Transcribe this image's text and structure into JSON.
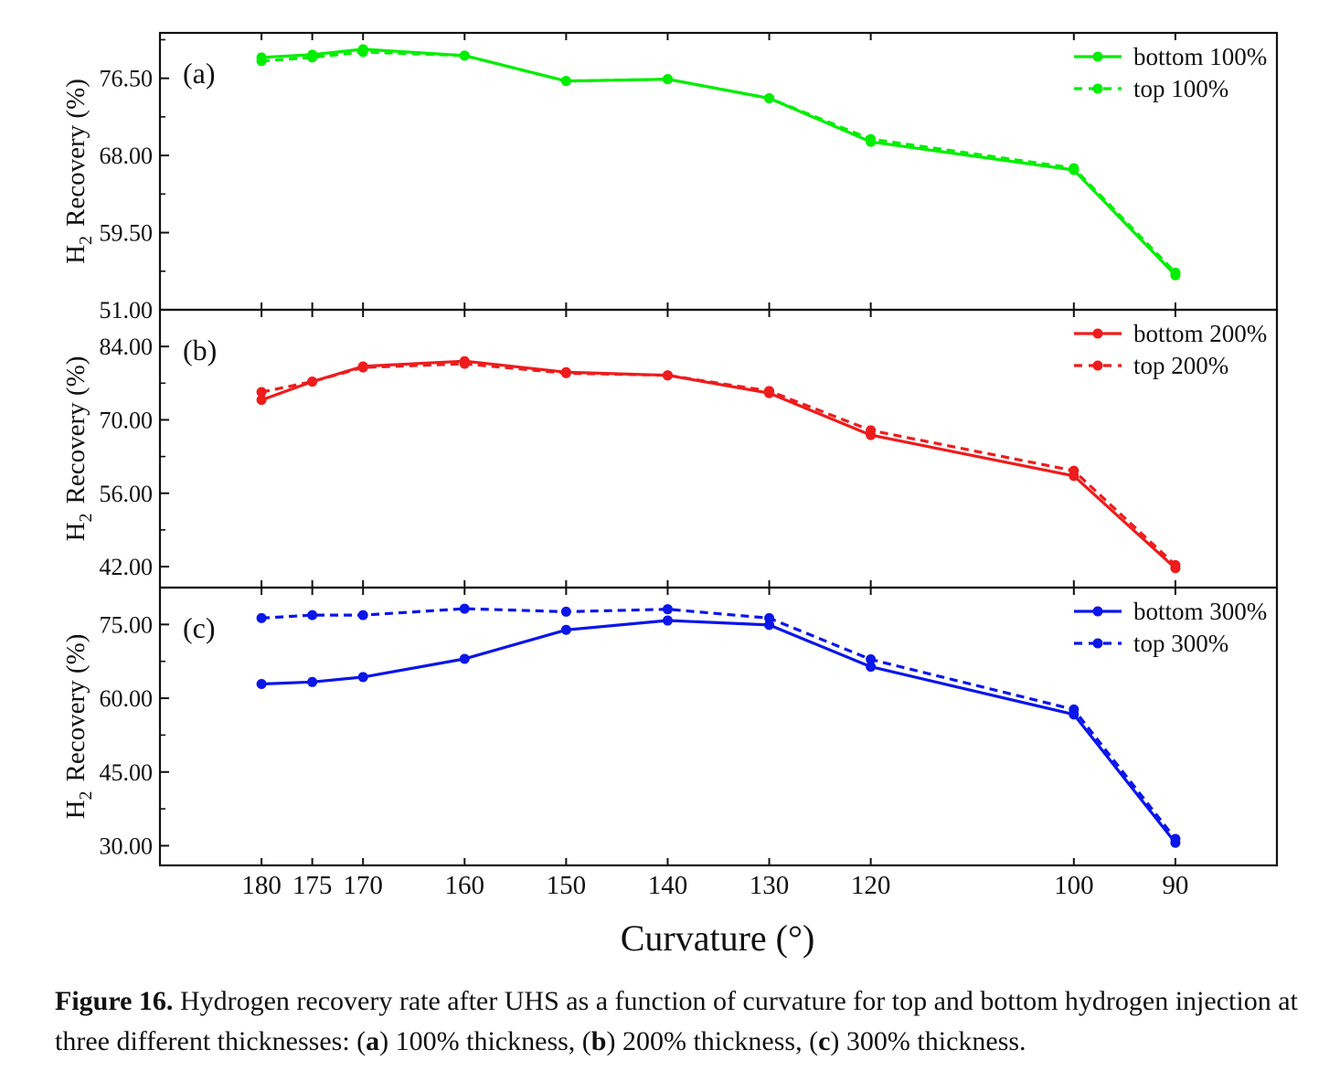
{
  "chart_data": [
    {
      "type": "line",
      "panel_label": "(a)",
      "ylabel_main": "H",
      "ylabel_sub": "2",
      "ylabel_rest": "Recovery (%)",
      "ylim": [
        51.0,
        81.5
      ],
      "yticks": [
        51.0,
        59.5,
        68.0,
        76.5
      ],
      "ytick_labels": [
        "51.00",
        "59.50",
        "68.00",
        "76.50"
      ],
      "x": [
        180,
        175,
        170,
        160,
        150,
        140,
        130,
        120,
        100,
        90
      ],
      "color": "#00ee00",
      "legend_position": "top-right",
      "series": [
        {
          "name": "bottom 100%",
          "style": "solid",
          "values": [
            78.8,
            79.1,
            79.7,
            79.0,
            76.2,
            76.4,
            74.3,
            69.5,
            66.4,
            54.8
          ]
        },
        {
          "name": "top 100%",
          "style": "dashed",
          "values": [
            78.4,
            78.8,
            79.4,
            79.0,
            76.2,
            76.4,
            74.3,
            69.8,
            66.6,
            55.1
          ]
        }
      ]
    },
    {
      "type": "line",
      "panel_label": "(b)",
      "ylabel_main": "H",
      "ylabel_sub": "2",
      "ylabel_rest": "Recovery (%)",
      "ylim": [
        38.0,
        91.0
      ],
      "yticks": [
        42.0,
        56.0,
        70.0,
        84.0
      ],
      "ytick_labels": [
        "42.00",
        "56.00",
        "70.00",
        "84.00"
      ],
      "x": [
        180,
        175,
        170,
        160,
        150,
        140,
        130,
        120,
        100,
        90
      ],
      "color": "#ee1c1c",
      "legend_position": "top-right",
      "series": [
        {
          "name": "bottom 200%",
          "style": "solid",
          "values": [
            73.8,
            77.3,
            80.2,
            81.2,
            79.1,
            78.5,
            75.1,
            67.1,
            59.3,
            41.7
          ]
        },
        {
          "name": "top 200%",
          "style": "dashed",
          "values": [
            75.3,
            77.3,
            80.0,
            80.7,
            78.9,
            78.5,
            75.5,
            68.0,
            60.3,
            42.3
          ]
        }
      ]
    },
    {
      "type": "line",
      "panel_label": "(c)",
      "ylabel_main": "H",
      "ylabel_sub": "2",
      "ylabel_rest": "Recovery (%)",
      "ylim": [
        26.0,
        82.5
      ],
      "yticks": [
        30.0,
        45.0,
        60.0,
        75.0
      ],
      "ytick_labels": [
        "30.00",
        "45.00",
        "60.00",
        "75.00"
      ],
      "x": [
        180,
        175,
        170,
        160,
        150,
        140,
        130,
        120,
        100,
        90
      ],
      "color": "#0b16e8",
      "legend_position": "top-right",
      "series": [
        {
          "name": "bottom 300%",
          "style": "solid",
          "values": [
            62.9,
            63.3,
            64.3,
            68.0,
            73.9,
            75.8,
            74.9,
            66.4,
            56.7,
            30.6
          ]
        },
        {
          "name": "top 300%",
          "style": "dashed",
          "values": [
            76.3,
            76.9,
            76.9,
            78.2,
            77.6,
            78.1,
            76.3,
            67.9,
            57.7,
            31.4
          ]
        }
      ]
    }
  ],
  "xaxis": {
    "label": "Curvature (°)",
    "tick_values": [
      180,
      175,
      170,
      160,
      150,
      140,
      130,
      120,
      100,
      90
    ],
    "tick_labels": [
      "180",
      "175",
      "170",
      "160",
      "150",
      "140",
      "130",
      "120",
      "100",
      "90"
    ],
    "xlim": [
      190,
      80
    ],
    "reversed": true
  },
  "caption": {
    "label": "Figure 16.",
    "part1": " Hydrogen recovery rate after UHS as a function of curvature for top and bottom hydrogen injection at three different thicknesses: (",
    "a": "a",
    "part2": ") 100% thickness, (",
    "b": "b",
    "part3": ") 200% thickness, (",
    "c": "c",
    "part4": ") 300% thickness."
  }
}
